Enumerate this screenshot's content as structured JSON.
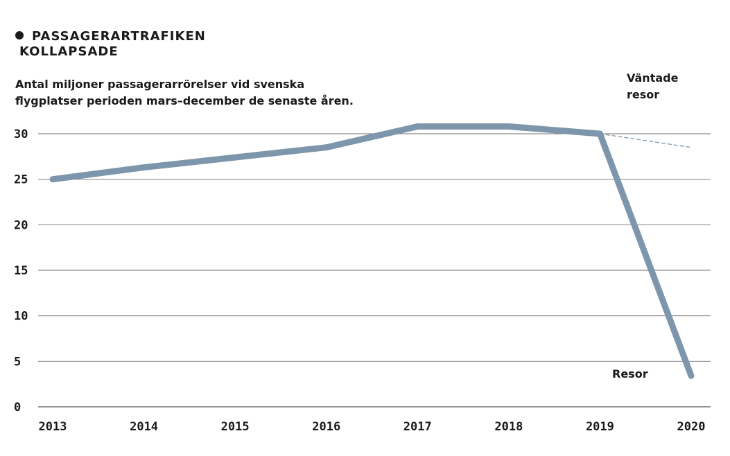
{
  "header": {
    "title_line1": "PASSAGERARTRAFIKEN",
    "title_line2": "KOLLAPSADE",
    "subtitle_line1": "Antal miljoner passagerarrörelser vid svenska",
    "subtitle_line2": "flygplatser perioden mars–december de senaste åren."
  },
  "chart_data": {
    "type": "line",
    "title": "PASSAGERARTRAFIKEN KOLLAPSADE",
    "subtitle": "Antal miljoner passagerarrörelser vid svenska flygplatser perioden mars–december de senaste åren.",
    "xlabel": "",
    "ylabel": "",
    "categories": [
      "2013",
      "2014",
      "2015",
      "2016",
      "2017",
      "2018",
      "2019",
      "2020"
    ],
    "ylim": [
      0,
      30
    ],
    "yticks": [
      "0",
      "5",
      "10",
      "15",
      "20",
      "25",
      "30"
    ],
    "grid": true,
    "series": [
      {
        "name": "Resor",
        "x": [
          "2013",
          "2014",
          "2015",
          "2016",
          "2017",
          "2018",
          "2019",
          "2020"
        ],
        "values": [
          25.0,
          26.3,
          27.4,
          28.5,
          30.8,
          30.8,
          30.0,
          3.4
        ],
        "color": "#7d96ab",
        "style": "solid"
      },
      {
        "name": "Väntade resor",
        "x": [
          "2019",
          "2020"
        ],
        "values": [
          30.0,
          28.5
        ],
        "color": "#7d96ab",
        "style": "dashed"
      }
    ],
    "annotations": {
      "expected_line1": "Väntade",
      "expected_line2": "resor",
      "actual": "Resor"
    }
  }
}
